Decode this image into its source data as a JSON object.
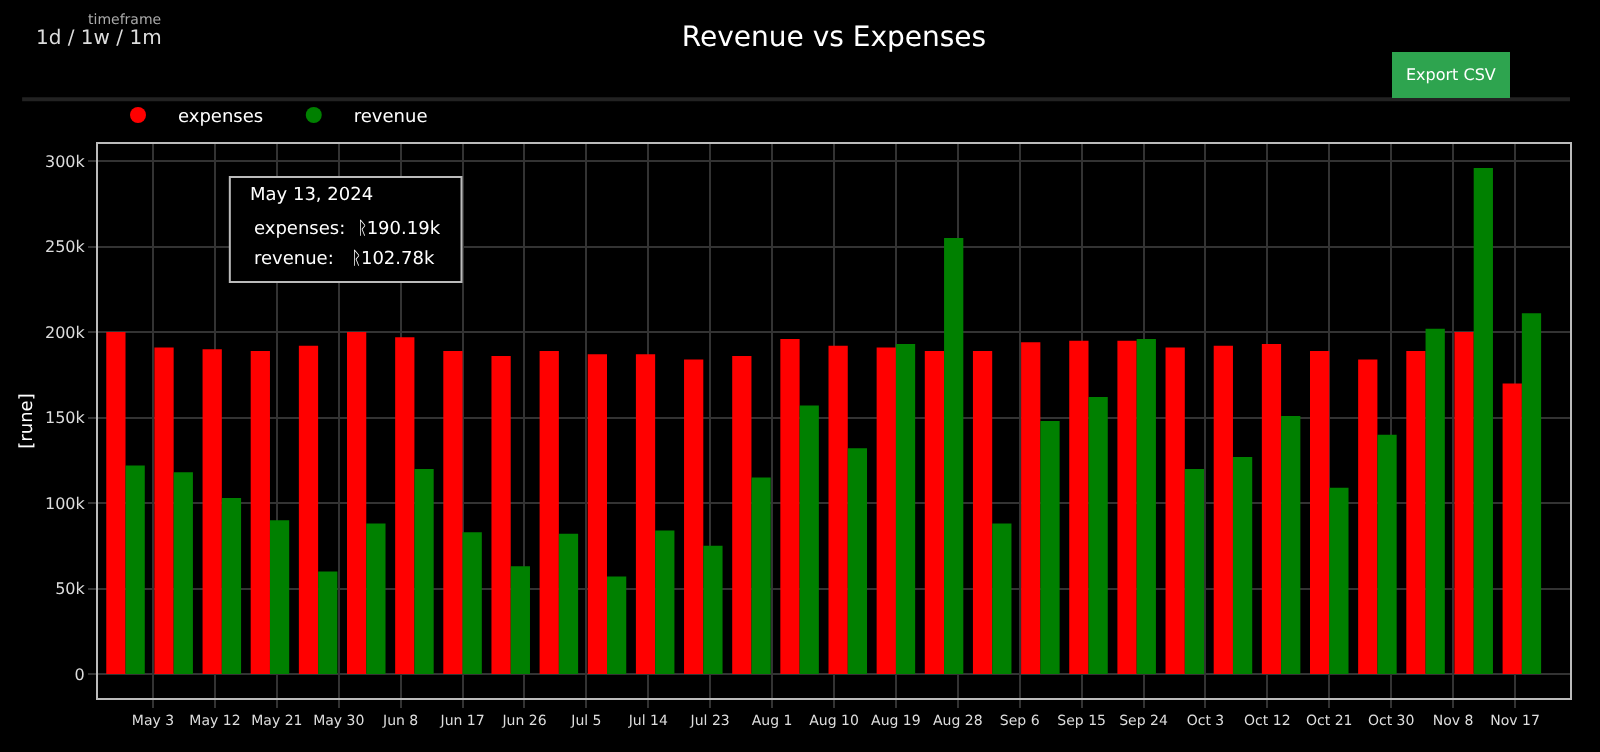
{
  "chart_data": {
    "type": "bar",
    "title": "Revenue vs Expenses",
    "ylabel": "[rune]",
    "x": [
      "2024-04-29",
      "2024-05-06",
      "2024-05-13",
      "2024-05-20",
      "2024-05-27",
      "2024-06-03",
      "2024-06-10",
      "2024-06-17",
      "2024-06-24",
      "2024-07-01",
      "2024-07-08",
      "2024-07-15",
      "2024-07-22",
      "2024-07-29",
      "2024-08-05",
      "2024-08-12",
      "2024-08-19",
      "2024-08-26",
      "2024-09-02",
      "2024-09-09",
      "2024-09-16",
      "2024-09-23",
      "2024-09-30",
      "2024-10-07",
      "2024-10-14",
      "2024-10-21",
      "2024-10-28",
      "2024-11-04",
      "2024-11-11",
      "2024-11-18"
    ],
    "series": [
      {
        "name": "expenses",
        "color": "#ff0000",
        "values": [
          200000,
          191000,
          190000,
          189000,
          192000,
          200000,
          197000,
          189000,
          186000,
          189000,
          187000,
          187000,
          184000,
          186000,
          196000,
          192000,
          191000,
          189000,
          189000,
          194000,
          195000,
          195000,
          191000,
          192000,
          193000,
          189000,
          184000,
          189000,
          200000,
          170000
        ]
      },
      {
        "name": "revenue",
        "color": "#008000",
        "values": [
          122000,
          118000,
          103000,
          90000,
          60000,
          88000,
          120000,
          83000,
          63000,
          82000,
          57000,
          84000,
          75000,
          115000,
          157000,
          132000,
          193000,
          255000,
          88000,
          148000,
          162000,
          196000,
          120000,
          127000,
          151000,
          109000,
          140000,
          202000,
          296000,
          211000
        ]
      }
    ],
    "xlim": [
      "2024-04-25",
      "2024-11-25"
    ],
    "xticks": [
      {
        "value": "2024-05-03",
        "label": "May 3"
      },
      {
        "value": "2024-05-12",
        "label": "May 12"
      },
      {
        "value": "2024-05-21",
        "label": "May 21"
      },
      {
        "value": "2024-05-30",
        "label": "May 30"
      },
      {
        "value": "2024-06-08",
        "label": "Jun 8"
      },
      {
        "value": "2024-06-17",
        "label": "Jun 17"
      },
      {
        "value": "2024-06-26",
        "label": "Jun 26"
      },
      {
        "value": "2024-07-05",
        "label": "Jul 5"
      },
      {
        "value": "2024-07-14",
        "label": "Jul 14"
      },
      {
        "value": "2024-07-23",
        "label": "Jul 23"
      },
      {
        "value": "2024-08-01",
        "label": "Aug 1"
      },
      {
        "value": "2024-08-10",
        "label": "Aug 10"
      },
      {
        "value": "2024-08-19",
        "label": "Aug 19"
      },
      {
        "value": "2024-08-28",
        "label": "Aug 28"
      },
      {
        "value": "2024-09-06",
        "label": "Sep 6"
      },
      {
        "value": "2024-09-15",
        "label": "Sep 15"
      },
      {
        "value": "2024-09-24",
        "label": "Sep 24"
      },
      {
        "value": "2024-10-03",
        "label": "Oct 3"
      },
      {
        "value": "2024-10-12",
        "label": "Oct 12"
      },
      {
        "value": "2024-10-21",
        "label": "Oct 21"
      },
      {
        "value": "2024-10-30",
        "label": "Oct 30"
      },
      {
        "value": "2024-11-08",
        "label": "Nov 8"
      },
      {
        "value": "2024-11-17",
        "label": "Nov 17"
      }
    ],
    "ylim": [
      -14000,
      310000
    ],
    "yticks": [
      0,
      {
        "value": 50000,
        "label": "50k"
      },
      {
        "value": 100000,
        "label": "100k"
      },
      {
        "value": 150000,
        "label": "150k"
      },
      {
        "value": 200000,
        "label": "200k"
      },
      {
        "value": 250000,
        "label": "250k"
      },
      {
        "value": 300000,
        "label": "300k"
      }
    ],
    "grid": true,
    "legend": "top left",
    "marker": "circle",
    "annotations": [
      "timeframe",
      "1d / 1w / 1m",
      "Export CSV",
      "May 13, 2024",
      "expenses:  ᚱ190.19k",
      "revenue:   ᚱ102.78k"
    ]
  }
}
